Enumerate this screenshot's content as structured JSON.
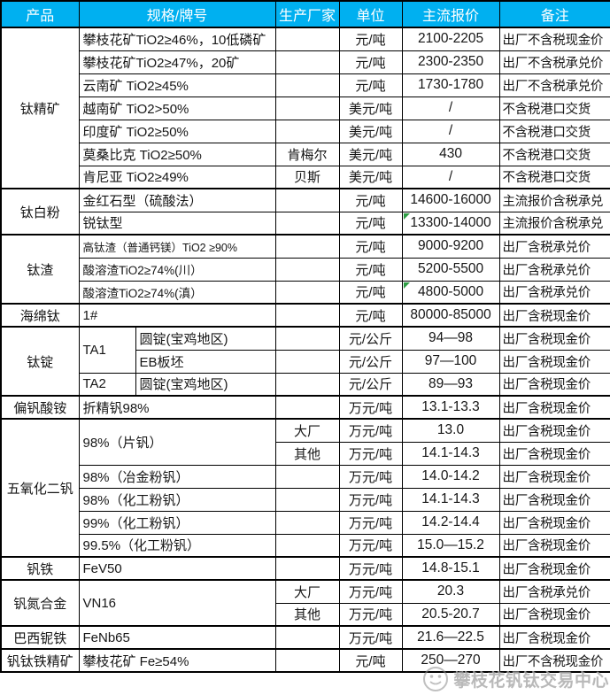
{
  "header": {
    "columns": [
      "产品",
      "规格/牌号",
      "生产厂家",
      "单位",
      "主流报价",
      "备注"
    ]
  },
  "groups": [
    {
      "product": "钛精矿",
      "rows": [
        {
          "spec": "攀枝花矿TiO2≥46%，10低磷矿",
          "maker": "",
          "unit": "元/吨",
          "price": "2100-2205",
          "note": "出厂不含税现金价"
        },
        {
          "spec": "攀枝花矿TiO2≥47%，20矿",
          "maker": "",
          "unit": "元/吨",
          "price": "2300-2350",
          "note": "出厂不含税承兑价"
        },
        {
          "spec": "云南矿 TiO2≥45%",
          "maker": "",
          "unit": "元/吨",
          "price": "1730-1780",
          "note": "出厂不含税承兑价"
        },
        {
          "spec": "越南矿 TiO2>50%",
          "maker": "",
          "unit": "美元/吨",
          "price": "/",
          "note": "不含税港口交货"
        },
        {
          "spec": "印度矿 TiO2≥50%",
          "maker": "",
          "unit": "美元/吨",
          "price": "/",
          "note": "不含税港口交货"
        },
        {
          "spec": "莫桑比克 TiO2≥50%",
          "maker": "肯梅尔",
          "unit": "美元/吨",
          "price": "430",
          "note": "不含税港口交货"
        },
        {
          "spec": "肯尼亚 TiO2≥49%",
          "maker": "贝斯",
          "unit": "美元/吨",
          "price": "/",
          "note": "不含税港口交货"
        }
      ]
    },
    {
      "product": "钛白粉",
      "rows": [
        {
          "spec": "金红石型（硫酸法）",
          "maker": "",
          "unit": "元/吨",
          "price": "14600-16000",
          "note": "主流报价含税承兑"
        },
        {
          "spec": "锐钛型",
          "maker": "",
          "unit": "元/吨",
          "price": "13300-14000",
          "note": "主流报价含税承兑",
          "green_triangle_icon": true
        }
      ]
    },
    {
      "product": "钛渣",
      "rows": [
        {
          "spec": "高钛渣（普通钙镁）TiO2 ≥90%",
          "small": 2,
          "maker": "",
          "unit": "元/吨",
          "price": "9000-9200",
          "note": "出厂含税承兑价"
        },
        {
          "spec": "酸溶渣TiO2≥74%(川）",
          "small": 1,
          "maker": "",
          "unit": "元/吨",
          "price": "5200-5500",
          "note": "出厂含税承兑价"
        },
        {
          "spec": "酸溶渣TiO2≥74%(滇）",
          "small": 1,
          "maker": "",
          "unit": "元/吨",
          "price": "4800-5000",
          "note": "出厂含税承兑价",
          "green_triangle_icon": true
        }
      ]
    },
    {
      "product": "海绵钛",
      "rows": [
        {
          "spec": "1#",
          "maker": "",
          "unit": "元/吨",
          "price": "80000-85000",
          "note": "出厂含税现金价"
        }
      ]
    },
    {
      "product": "钛锭",
      "rows": [
        {
          "spec": "TA1",
          "spec_rowspan": 2,
          "spec2": "圆锭(宝鸡地区)",
          "maker": "",
          "unit": "元/公斤",
          "price": "94—98",
          "note": "出厂含税现金价"
        },
        {
          "spec2": "EB板坯",
          "maker": "",
          "unit": "元/公斤",
          "price": "97—100",
          "note": "出厂含税现金价"
        },
        {
          "spec": "TA2",
          "spec2": "圆锭(宝鸡地区)",
          "maker": "",
          "unit": "元/公斤",
          "price": "89—93",
          "note": "出厂含税现金价"
        }
      ]
    },
    {
      "product": "偏钒酸铵",
      "rows": [
        {
          "spec": "折精钒98%",
          "maker": "",
          "unit": "万元/吨",
          "price": "13.1-13.3",
          "note": "出厂含税现金价"
        }
      ]
    },
    {
      "product": "五氧化二钒",
      "rows": [
        {
          "spec": "98%（片钒）",
          "spec_rowspan": 2,
          "maker": "大厂",
          "unit": "万元/吨",
          "price": "13.0",
          "note": "出厂含税现金价"
        },
        {
          "maker": "其他",
          "unit": "万元/吨",
          "price": "14.1-14.3",
          "note": "出厂含税现金价"
        },
        {
          "spec": "98%（冶金粉钒）",
          "maker": "",
          "unit": "万元/吨",
          "price": "14.0-14.2",
          "note": "出厂含税现金价"
        },
        {
          "spec": "98%（化工粉钒）",
          "maker": "",
          "unit": "万元/吨",
          "price": "14.1-14.3",
          "note": "出厂含税现金价"
        },
        {
          "spec": "99%（化工粉钒）",
          "maker": "",
          "unit": "万元/吨",
          "price": "14.2-14.4",
          "note": "出厂含税现金价"
        },
        {
          "spec": "99.5%（化工粉钒）",
          "maker": "",
          "unit": "万元/吨",
          "price": "15.0—15.2",
          "note": "出厂含税现金价"
        }
      ]
    },
    {
      "product": "钒铁",
      "rows": [
        {
          "spec": "FeV50",
          "maker": "",
          "unit": "万元/吨",
          "price": "14.8-15.1",
          "note": "出厂含税现金价"
        }
      ]
    },
    {
      "product": "钒氮合金",
      "rows": [
        {
          "spec": "VN16",
          "spec_rowspan": 2,
          "maker": "大厂",
          "unit": "万元/吨",
          "price": "20.3",
          "note": "出厂含税承兑价"
        },
        {
          "maker": "其他",
          "unit": "万元/吨",
          "price": "20.5-20.7",
          "note": "出厂含税现金价"
        }
      ]
    },
    {
      "product": "巴西铌铁",
      "rows": [
        {
          "spec": "FeNb65",
          "maker": "",
          "unit": "万元/吨",
          "price": "21.6—22.5",
          "note": "出厂含税现金价"
        }
      ]
    },
    {
      "product": "钒钛铁精矿",
      "rows": [
        {
          "spec": "攀枝花矿 Fe≥54%",
          "maker": "",
          "unit": "元/吨",
          "price": "250—270",
          "note": "出厂不含税现金价"
        }
      ]
    }
  ],
  "watermark": {
    "text": "攀枝花钒钛交易中心"
  },
  "colors": {
    "header_bg": "#00B0F0",
    "header_text": "#FFFFFF",
    "border": "#000000",
    "triangle_green": "#2E9E44"
  }
}
